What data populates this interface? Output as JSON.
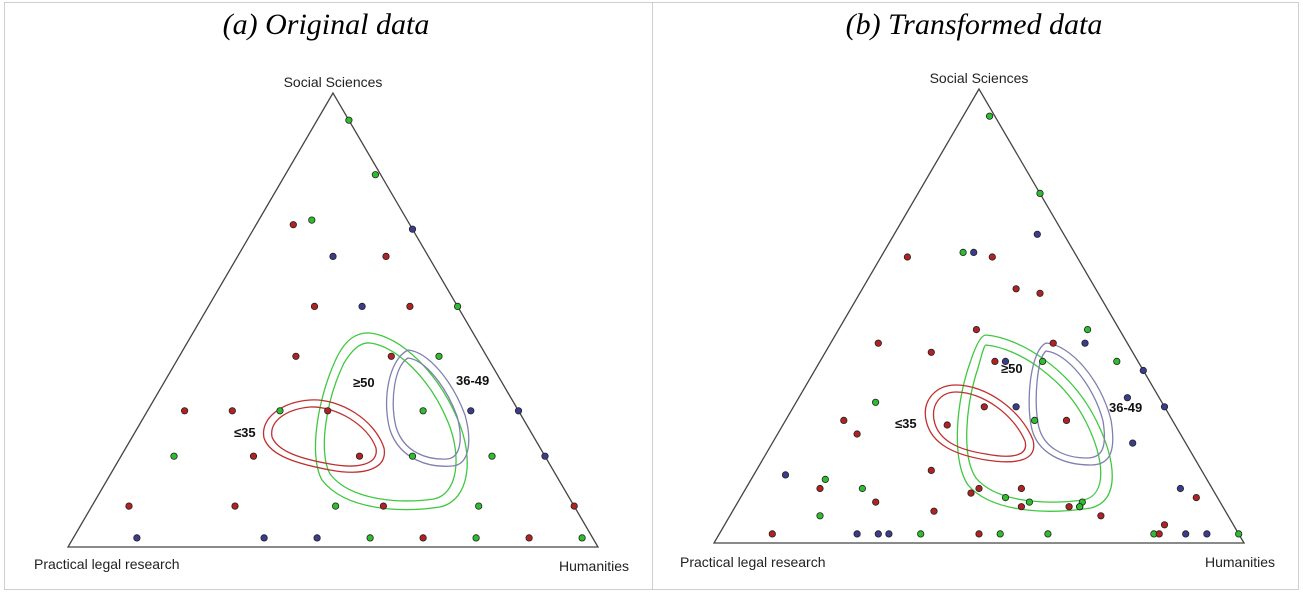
{
  "colors": {
    "group_le35": "#b22222",
    "group_36_49": "#3c3c8c",
    "group_ge50": "#2ebd2e",
    "contour_le35": "#c03030",
    "contour_36_49": "#8080b0",
    "contour_ge50": "#40c840"
  },
  "chart_data": [
    {
      "type": "scatter",
      "subtype": "ternary",
      "title": "(a) Original data",
      "vertices": {
        "top": "Social Sciences",
        "left": "Practical legal research",
        "right": "Humanities"
      },
      "group_labels": {
        "le35": "≤35",
        "g36_49": "36-49",
        "ge50": "≥50"
      },
      "points": [
        {
          "group": "ge50",
          "ss": 0.94,
          "pl": 0.0,
          "hu": 0.06
        },
        {
          "group": "ge50",
          "ss": 0.82,
          "pl": 0.01,
          "hu": 0.17
        },
        {
          "group": "le35",
          "ss": 0.71,
          "pl": 0.22,
          "hu": 0.07
        },
        {
          "group": "ge50",
          "ss": 0.72,
          "pl": 0.18,
          "hu": 0.1
        },
        {
          "group": "g36_49",
          "ss": 0.7,
          "pl": 0.0,
          "hu": 0.3
        },
        {
          "group": "g36_49",
          "ss": 0.64,
          "pl": 0.18,
          "hu": 0.18
        },
        {
          "group": "le35",
          "ss": 0.64,
          "pl": 0.08,
          "hu": 0.28
        },
        {
          "group": "le35",
          "ss": 0.53,
          "pl": 0.27,
          "hu": 0.2
        },
        {
          "group": "g36_49",
          "ss": 0.53,
          "pl": 0.18,
          "hu": 0.29
        },
        {
          "group": "le35",
          "ss": 0.53,
          "pl": 0.09,
          "hu": 0.38
        },
        {
          "group": "ge50",
          "ss": 0.53,
          "pl": 0.0,
          "hu": 0.47
        },
        {
          "group": "le35",
          "ss": 0.42,
          "pl": 0.36,
          "hu": 0.22
        },
        {
          "group": "le35",
          "ss": 0.42,
          "pl": 0.18,
          "hu": 0.4
        },
        {
          "group": "ge50",
          "ss": 0.42,
          "pl": 0.09,
          "hu": 0.49
        },
        {
          "group": "le35",
          "ss": 0.3,
          "pl": 0.63,
          "hu": 0.07
        },
        {
          "group": "le35",
          "ss": 0.3,
          "pl": 0.54,
          "hu": 0.16
        },
        {
          "group": "ge50",
          "ss": 0.3,
          "pl": 0.45,
          "hu": 0.25
        },
        {
          "group": "le35",
          "ss": 0.3,
          "pl": 0.36,
          "hu": 0.34
        },
        {
          "group": "ge50",
          "ss": 0.3,
          "pl": 0.18,
          "hu": 0.52
        },
        {
          "group": "g36_49",
          "ss": 0.3,
          "pl": 0.09,
          "hu": 0.61
        },
        {
          "group": "g36_49",
          "ss": 0.3,
          "pl": 0.0,
          "hu": 0.7
        },
        {
          "group": "ge50",
          "ss": 0.2,
          "pl": 0.7,
          "hu": 0.1
        },
        {
          "group": "le35",
          "ss": 0.2,
          "pl": 0.55,
          "hu": 0.25
        },
        {
          "group": "le35",
          "ss": 0.2,
          "pl": 0.35,
          "hu": 0.45
        },
        {
          "group": "ge50",
          "ss": 0.2,
          "pl": 0.25,
          "hu": 0.55
        },
        {
          "group": "ge50",
          "ss": 0.2,
          "pl": 0.1,
          "hu": 0.7
        },
        {
          "group": "g36_49",
          "ss": 0.2,
          "pl": 0.0,
          "hu": 0.8
        },
        {
          "group": "le35",
          "ss": 0.09,
          "pl": 0.84,
          "hu": 0.07
        },
        {
          "group": "le35",
          "ss": 0.09,
          "pl": 0.64,
          "hu": 0.27
        },
        {
          "group": "ge50",
          "ss": 0.09,
          "pl": 0.45,
          "hu": 0.46
        },
        {
          "group": "le35",
          "ss": 0.09,
          "pl": 0.36,
          "hu": 0.55
        },
        {
          "group": "ge50",
          "ss": 0.09,
          "pl": 0.18,
          "hu": 0.73
        },
        {
          "group": "le35",
          "ss": 0.09,
          "pl": 0.0,
          "hu": 0.91
        },
        {
          "group": "g36_49",
          "ss": 0.02,
          "pl": 0.86,
          "hu": 0.12
        },
        {
          "group": "g36_49",
          "ss": 0.02,
          "pl": 0.62,
          "hu": 0.36
        },
        {
          "group": "g36_49",
          "ss": 0.02,
          "pl": 0.52,
          "hu": 0.46
        },
        {
          "group": "ge50",
          "ss": 0.02,
          "pl": 0.42,
          "hu": 0.56
        },
        {
          "group": "le35",
          "ss": 0.02,
          "pl": 0.32,
          "hu": 0.66
        },
        {
          "group": "ge50",
          "ss": 0.02,
          "pl": 0.22,
          "hu": 0.76
        },
        {
          "group": "le35",
          "ss": 0.02,
          "pl": 0.12,
          "hu": 0.86
        },
        {
          "group": "ge50",
          "ss": 0.02,
          "pl": 0.02,
          "hu": 0.96
        }
      ]
    },
    {
      "type": "scatter",
      "subtype": "ternary",
      "title": "(b) Transformed data",
      "vertices": {
        "top": "Social Sciences",
        "left": "Practical legal research",
        "right": "Humanities"
      },
      "group_labels": {
        "le35": "≤35",
        "g36_49": "36-49",
        "ge50": "≥50"
      },
      "points": [
        {
          "group": "ge50",
          "ss": 0.94,
          "pl": 0.01,
          "hu": 0.05
        },
        {
          "group": "ge50",
          "ss": 0.77,
          "pl": 0.0,
          "hu": 0.23
        },
        {
          "group": "g36_49",
          "ss": 0.68,
          "pl": 0.05,
          "hu": 0.27
        },
        {
          "group": "le35",
          "ss": 0.63,
          "pl": 0.32,
          "hu": 0.05
        },
        {
          "group": "ge50",
          "ss": 0.64,
          "pl": 0.21,
          "hu": 0.15
        },
        {
          "group": "g36_49",
          "ss": 0.64,
          "pl": 0.19,
          "hu": 0.17
        },
        {
          "group": "le35",
          "ss": 0.63,
          "pl": 0.16,
          "hu": 0.21
        },
        {
          "group": "le35",
          "ss": 0.56,
          "pl": 0.15,
          "hu": 0.29
        },
        {
          "group": "le35",
          "ss": 0.55,
          "pl": 0.11,
          "hu": 0.34
        },
        {
          "group": "ge50",
          "ss": 0.47,
          "pl": 0.06,
          "hu": 0.47
        },
        {
          "group": "le35",
          "ss": 0.47,
          "pl": 0.27,
          "hu": 0.26
        },
        {
          "group": "le35",
          "ss": 0.44,
          "pl": 0.47,
          "hu": 0.09
        },
        {
          "group": "le35",
          "ss": 0.42,
          "pl": 0.38,
          "hu": 0.2
        },
        {
          "group": "le35",
          "ss": 0.4,
          "pl": 0.27,
          "hu": 0.33
        },
        {
          "group": "g36_49",
          "ss": 0.4,
          "pl": 0.25,
          "hu": 0.35
        },
        {
          "group": "ge50",
          "ss": 0.4,
          "pl": 0.18,
          "hu": 0.42
        },
        {
          "group": "le35",
          "ss": 0.44,
          "pl": 0.14,
          "hu": 0.42
        },
        {
          "group": "g36_49",
          "ss": 0.44,
          "pl": 0.08,
          "hu": 0.48
        },
        {
          "group": "ge50",
          "ss": 0.4,
          "pl": 0.04,
          "hu": 0.56
        },
        {
          "group": "g36_49",
          "ss": 0.38,
          "pl": 0.0,
          "hu": 0.62
        },
        {
          "group": "g36_49",
          "ss": 0.32,
          "pl": 0.06,
          "hu": 0.62
        },
        {
          "group": "g36_49",
          "ss": 0.3,
          "pl": 0.0,
          "hu": 0.7
        },
        {
          "group": "ge50",
          "ss": 0.31,
          "pl": 0.54,
          "hu": 0.15
        },
        {
          "group": "le35",
          "ss": 0.27,
          "pl": 0.62,
          "hu": 0.11
        },
        {
          "group": "le35",
          "ss": 0.24,
          "pl": 0.61,
          "hu": 0.15
        },
        {
          "group": "le35",
          "ss": 0.26,
          "pl": 0.43,
          "hu": 0.31
        },
        {
          "group": "le35",
          "ss": 0.3,
          "pl": 0.34,
          "hu": 0.36
        },
        {
          "group": "g36_49",
          "ss": 0.3,
          "pl": 0.28,
          "hu": 0.42
        },
        {
          "group": "ge50",
          "ss": 0.27,
          "pl": 0.26,
          "hu": 0.47
        },
        {
          "group": "le35",
          "ss": 0.27,
          "pl": 0.2,
          "hu": 0.53
        },
        {
          "group": "g36_49",
          "ss": 0.22,
          "pl": 0.1,
          "hu": 0.68
        },
        {
          "group": "le35",
          "ss": 0.16,
          "pl": 0.51,
          "hu": 0.33
        },
        {
          "group": "g36_49",
          "ss": 0.15,
          "pl": 0.79,
          "hu": 0.06
        },
        {
          "group": "ge50",
          "ss": 0.14,
          "pl": 0.72,
          "hu": 0.14
        },
        {
          "group": "le35",
          "ss": 0.12,
          "pl": 0.74,
          "hu": 0.14
        },
        {
          "group": "ge50",
          "ss": 0.12,
          "pl": 0.66,
          "hu": 0.22
        },
        {
          "group": "le35",
          "ss": 0.12,
          "pl": 0.44,
          "hu": 0.44
        },
        {
          "group": "le35",
          "ss": 0.12,
          "pl": 0.36,
          "hu": 0.52
        },
        {
          "group": "ge50",
          "ss": 0.1,
          "pl": 0.4,
          "hu": 0.5
        },
        {
          "group": "ge50",
          "ss": 0.09,
          "pl": 0.36,
          "hu": 0.55
        },
        {
          "group": "le35",
          "ss": 0.08,
          "pl": 0.38,
          "hu": 0.54
        },
        {
          "group": "le35",
          "ss": 0.08,
          "pl": 0.29,
          "hu": 0.63
        },
        {
          "group": "le35",
          "ss": 0.08,
          "pl": 0.27,
          "hu": 0.65
        },
        {
          "group": "g36_49",
          "ss": 0.12,
          "pl": 0.06,
          "hu": 0.82
        },
        {
          "group": "le35",
          "ss": 0.1,
          "pl": 0.04,
          "hu": 0.86
        },
        {
          "group": "le35",
          "ss": 0.11,
          "pl": 0.46,
          "hu": 0.43
        },
        {
          "group": "le35",
          "ss": 0.07,
          "pl": 0.55,
          "hu": 0.38
        },
        {
          "group": "ge50",
          "ss": 0.06,
          "pl": 0.77,
          "hu": 0.17
        },
        {
          "group": "le35",
          "ss": 0.09,
          "pl": 0.65,
          "hu": 0.26
        },
        {
          "group": "ge50",
          "ss": 0.09,
          "pl": 0.26,
          "hu": 0.65
        },
        {
          "group": "ge50",
          "ss": 0.08,
          "pl": 0.27,
          "hu": 0.65
        },
        {
          "group": "le35",
          "ss": 0.06,
          "pl": 0.24,
          "hu": 0.7
        },
        {
          "group": "le35",
          "ss": 0.04,
          "pl": 0.13,
          "hu": 0.83
        },
        {
          "group": "le35",
          "ss": 0.02,
          "pl": 0.88,
          "hu": 0.1
        },
        {
          "group": "g36_49",
          "ss": 0.02,
          "pl": 0.72,
          "hu": 0.26
        },
        {
          "group": "g36_49",
          "ss": 0.02,
          "pl": 0.68,
          "hu": 0.3
        },
        {
          "group": "g36_49",
          "ss": 0.02,
          "pl": 0.66,
          "hu": 0.32
        },
        {
          "group": "ge50",
          "ss": 0.02,
          "pl": 0.6,
          "hu": 0.38
        },
        {
          "group": "le35",
          "ss": 0.02,
          "pl": 0.49,
          "hu": 0.49
        },
        {
          "group": "ge50",
          "ss": 0.02,
          "pl": 0.45,
          "hu": 0.53
        },
        {
          "group": "ge50",
          "ss": 0.02,
          "pl": 0.36,
          "hu": 0.62
        },
        {
          "group": "ge50",
          "ss": 0.02,
          "pl": 0.16,
          "hu": 0.82
        },
        {
          "group": "le35",
          "ss": 0.02,
          "pl": 0.15,
          "hu": 0.83
        },
        {
          "group": "g36_49",
          "ss": 0.02,
          "pl": 0.1,
          "hu": 0.88
        },
        {
          "group": "g36_49",
          "ss": 0.02,
          "pl": 0.06,
          "hu": 0.92
        },
        {
          "group": "ge50",
          "ss": 0.02,
          "pl": 0.0,
          "hu": 0.98
        }
      ]
    }
  ]
}
